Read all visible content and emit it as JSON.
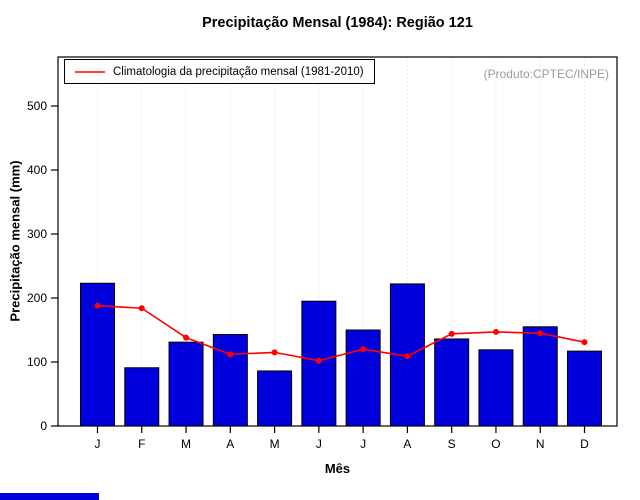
{
  "title": "Precipitação Mensal (1984): Região 121",
  "annotation": "(Produto:CPTEC/INPE)",
  "xlabel": "Mês",
  "ylabel": "Precipitação mensal (mm)",
  "legend": {
    "label": "Climatologia da precipitação mensal (1981-2010)"
  },
  "chart_data": {
    "type": "bar",
    "categories": [
      "J",
      "F",
      "M",
      "A",
      "M",
      "J",
      "J",
      "A",
      "S",
      "O",
      "N",
      "D"
    ],
    "series": [
      {
        "name": "Precipitação mensal 1984",
        "type": "bar",
        "color": "#0000dd",
        "values": [
          223,
          91,
          131,
          143,
          86,
          195,
          150,
          222,
          136,
          119,
          155,
          117
        ]
      },
      {
        "name": "Climatologia da precipitação mensal (1981-2010)",
        "type": "line",
        "color": "#ff0000",
        "values": [
          188,
          184,
          138,
          112,
          115,
          102,
          120,
          109,
          144,
          147,
          145,
          131
        ]
      }
    ],
    "title": "Precipitação Mensal (1984): Região 121",
    "xlabel": "Mês",
    "ylabel": "Precipitação mensal (mm)",
    "ylim": [
      0,
      520
    ],
    "yticks": [
      0,
      100,
      200,
      300,
      400,
      500
    ],
    "grid": "vertical-dotted",
    "legend_position": "top-left"
  },
  "colors": {
    "bar": "#0000dd",
    "climatology_line": "#ff0000",
    "annotation_text": "#9b9b9b",
    "gridline": "#d9d9d9"
  }
}
